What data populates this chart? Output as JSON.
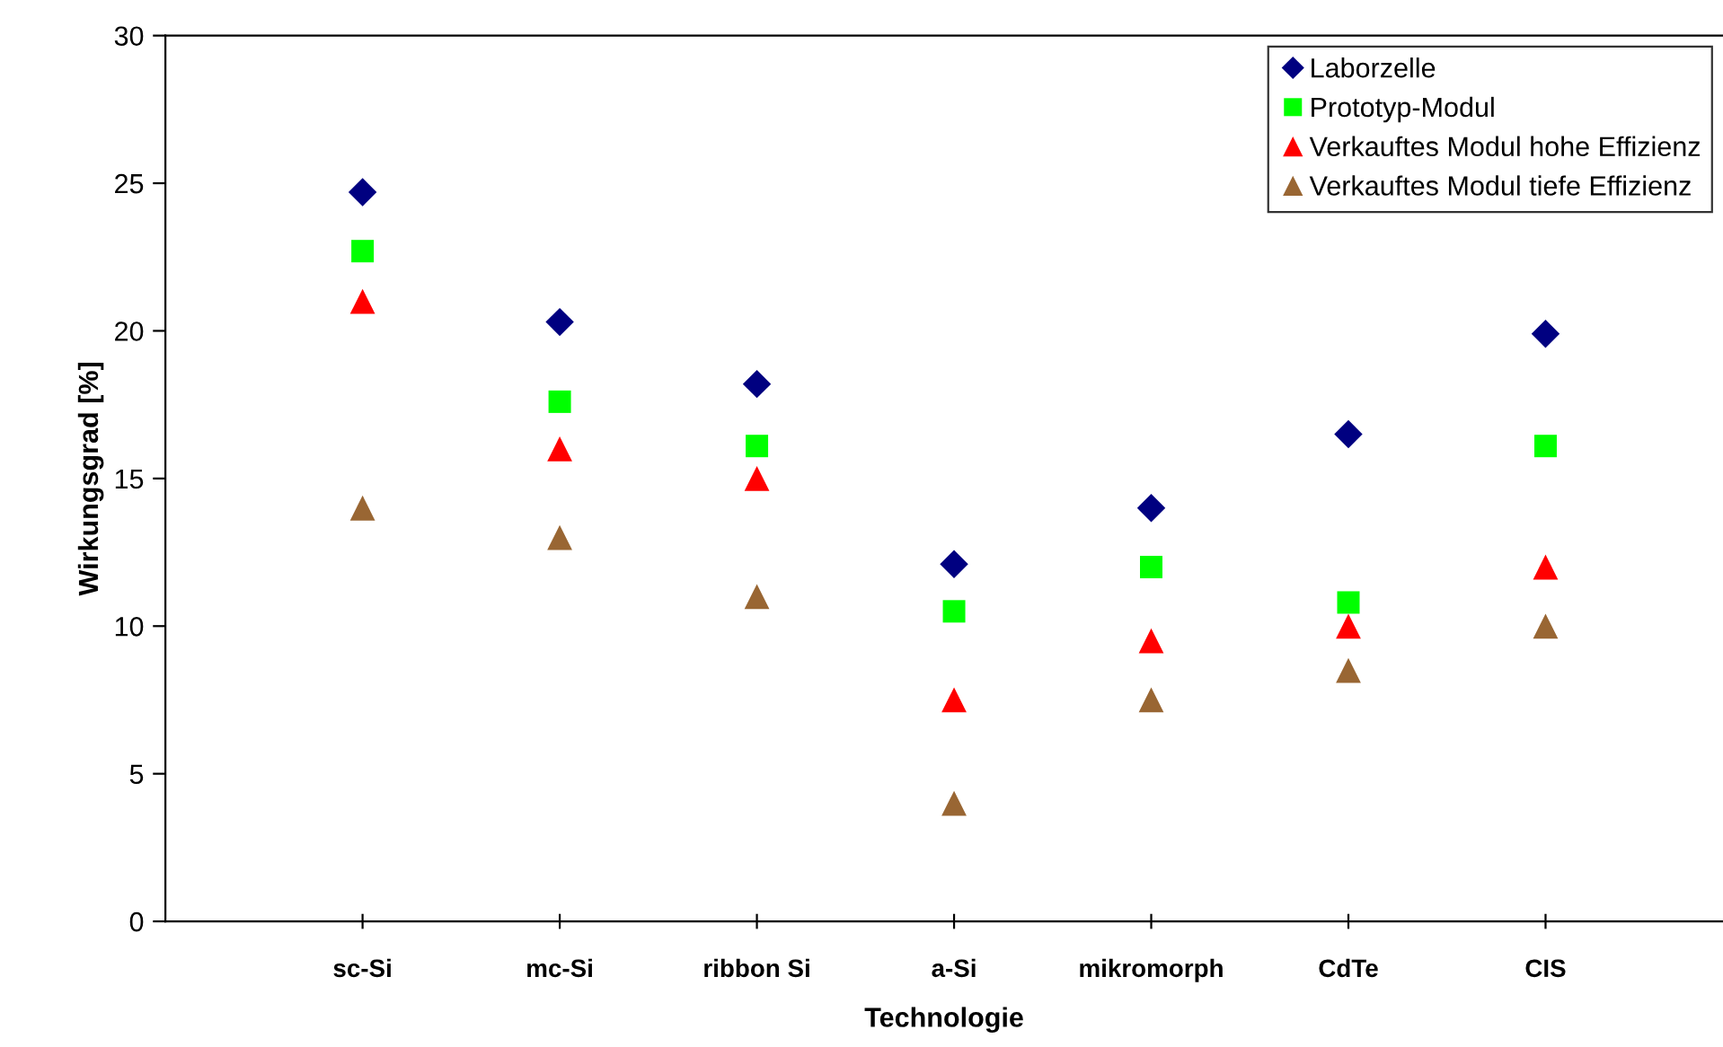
{
  "chart_data": {
    "type": "scatter",
    "xlabel": "Technologie",
    "ylabel": "Wirkungsgrad [%]",
    "categories": [
      "sc-Si",
      "mc-Si",
      "ribbon Si",
      "a-Si",
      "mikromorph",
      "CdTe",
      "CIS"
    ],
    "series": [
      {
        "name": "Laborzelle",
        "color": "#000080",
        "marker": "diamond",
        "values": [
          24.7,
          20.3,
          18.2,
          12.1,
          14.0,
          16.5,
          19.9
        ]
      },
      {
        "name": "Prototyp-Modul",
        "color": "#00ff00",
        "marker": "square",
        "values": [
          22.7,
          17.6,
          16.1,
          10.5,
          12.0,
          10.8,
          16.1
        ]
      },
      {
        "name": "Verkauftes Modul hohe Effizienz",
        "color": "#ff0000",
        "marker": "triangle",
        "values": [
          21.0,
          16.0,
          15.0,
          7.5,
          9.5,
          10.0,
          12.0
        ]
      },
      {
        "name": "Verkauftes Modul tiefe Effizienz",
        "color": "#996633",
        "marker": "triangle",
        "values": [
          14.0,
          13.0,
          11.0,
          4.0,
          7.5,
          8.5,
          10.0
        ]
      }
    ],
    "ylim": [
      0,
      30
    ],
    "yticks": [
      0,
      5,
      10,
      15,
      20,
      25,
      30
    ],
    "grid": false,
    "legend": "top right"
  }
}
